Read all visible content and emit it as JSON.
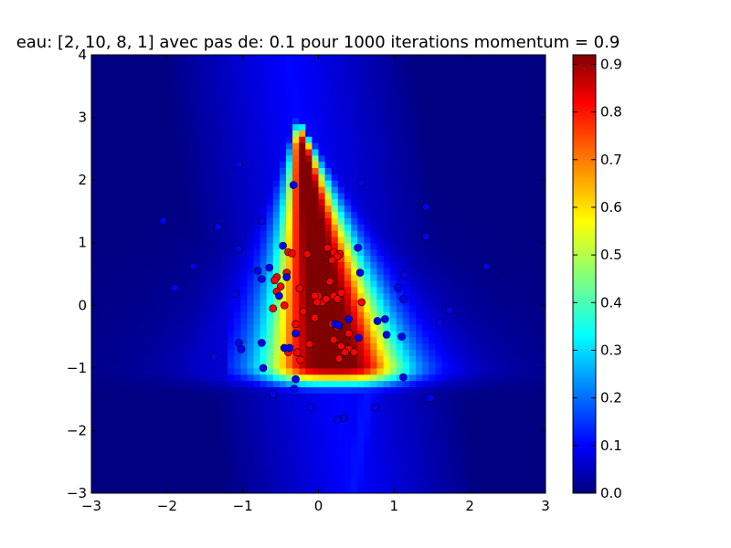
{
  "chart_data": {
    "type": "heatmap",
    "title": "eau: [2, 10, 8, 1] avec pas de: 0.1 pour 1000 iterations momentum = 0.9",
    "xlabel": "",
    "ylabel": "",
    "xlim": [
      -3,
      3
    ],
    "ylim": [
      -3,
      4
    ],
    "x_ticks": [
      "−3",
      "−2",
      "−1",
      "0",
      "1",
      "2",
      "3"
    ],
    "y_ticks": [
      "−3",
      "−2",
      "−1",
      "0",
      "1",
      "2",
      "3",
      "4"
    ],
    "colorbar": {
      "min": 0.0,
      "max": 0.92,
      "colormap": "jet",
      "ticks": [
        "0.0",
        "0.1",
        "0.2",
        "0.3",
        "0.4",
        "0.5",
        "0.6",
        "0.7",
        "0.8",
        "0.9"
      ]
    },
    "grid": false,
    "series": [
      {
        "color": "#ff0000",
        "points": [
          [
            -0.4,
            0.85
          ],
          [
            -0.35,
            0.83
          ],
          [
            -0.15,
            0.82
          ],
          [
            0.12,
            0.92
          ],
          [
            0.2,
            0.85
          ],
          [
            0.28,
            0.82
          ],
          [
            0.25,
            0.78
          ],
          [
            0.18,
            0.72
          ],
          [
            -0.55,
            0.45
          ],
          [
            -0.58,
            0.4
          ],
          [
            -0.42,
            0.52
          ],
          [
            -0.5,
            0.3
          ],
          [
            -0.55,
            0.22
          ],
          [
            -0.25,
            0.27
          ],
          [
            0.15,
            0.38
          ],
          [
            0.0,
            0.15
          ],
          [
            0.05,
            0.05
          ],
          [
            0.1,
            0.1
          ],
          [
            -0.05,
            0.15
          ],
          [
            -0.02,
            0.05
          ],
          [
            0.2,
            0.15
          ],
          [
            0.25,
            0.1
          ],
          [
            0.3,
            0.2
          ],
          [
            0.57,
            0.05
          ],
          [
            -0.45,
            0.0
          ],
          [
            -0.6,
            -0.05
          ],
          [
            -0.2,
            -0.1
          ],
          [
            -0.05,
            -0.2
          ],
          [
            0.18,
            -0.3
          ],
          [
            0.25,
            -0.35
          ],
          [
            -0.3,
            -0.3
          ],
          [
            0.2,
            -0.55
          ],
          [
            0.3,
            -0.65
          ],
          [
            0.4,
            -0.7
          ],
          [
            0.35,
            -0.75
          ],
          [
            0.47,
            -0.75
          ],
          [
            0.27,
            -0.85
          ],
          [
            -0.28,
            -0.75
          ],
          [
            -0.4,
            -0.75
          ],
          [
            -0.24,
            -0.87
          ],
          [
            -0.12,
            -0.62
          ],
          [
            0.4,
            -0.45
          ]
        ]
      },
      {
        "color": "#0000ff",
        "points": [
          [
            -0.33,
            1.92
          ],
          [
            0.57,
            1.96
          ],
          [
            -0.47,
            0.95
          ],
          [
            0.52,
            0.92
          ],
          [
            -0.42,
            0.45
          ],
          [
            0.55,
            0.52
          ],
          [
            -0.52,
            0.15
          ],
          [
            0.78,
            -0.25
          ],
          [
            0.4,
            -0.22
          ],
          [
            0.22,
            -0.3
          ],
          [
            0.27,
            -0.32
          ],
          [
            0.53,
            -0.52
          ],
          [
            -0.3,
            -0.45
          ],
          [
            -0.75,
            -0.6
          ],
          [
            -0.38,
            -0.68
          ],
          [
            -0.45,
            -0.68
          ],
          [
            -1.05,
            2.25
          ],
          [
            -2.05,
            1.35
          ],
          [
            -1.33,
            1.25
          ],
          [
            -0.75,
            1.35
          ],
          [
            -1.05,
            0.9
          ],
          [
            -0.65,
            0.6
          ],
          [
            -1.65,
            0.62
          ],
          [
            -0.8,
            0.55
          ],
          [
            -0.75,
            0.42
          ],
          [
            -1.9,
            0.28
          ],
          [
            -1.1,
            0.18
          ],
          [
            1.42,
            1.57
          ],
          [
            1.42,
            1.1
          ],
          [
            2.22,
            0.62
          ],
          [
            1.13,
            0.48
          ],
          [
            1.05,
            0.28
          ],
          [
            1.12,
            0.1
          ],
          [
            1.73,
            -0.08
          ],
          [
            1.6,
            -0.28
          ],
          [
            0.88,
            -0.22
          ],
          [
            0.9,
            -0.47
          ],
          [
            1.1,
            -0.5
          ],
          [
            -1.05,
            -0.6
          ],
          [
            -1.02,
            -0.7
          ],
          [
            -1.38,
            -0.82
          ],
          [
            -0.73,
            -1.0
          ],
          [
            -0.3,
            -1.18
          ],
          [
            1.12,
            -1.15
          ],
          [
            -0.32,
            -1.33
          ],
          [
            -0.6,
            -1.42
          ],
          [
            1.48,
            -1.48
          ],
          [
            -0.1,
            -1.63
          ],
          [
            0.75,
            -1.63
          ],
          [
            0.33,
            -1.8
          ],
          [
            0.25,
            -1.82
          ]
        ]
      }
    ]
  }
}
